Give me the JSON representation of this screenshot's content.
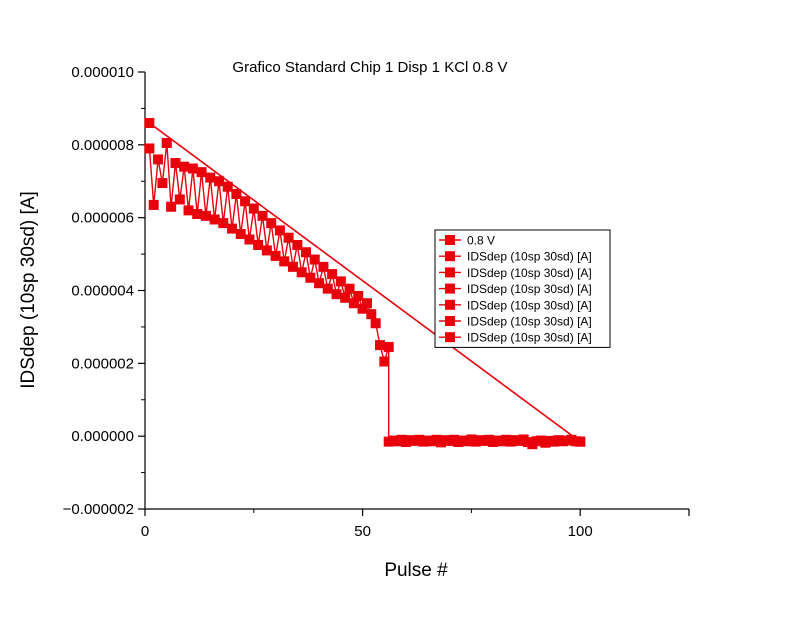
{
  "chart_data": {
    "type": "line",
    "title": "Grafico Standard Chip 1 Disp 1 KCl 0.8 V",
    "xlabel": "Pulse #",
    "ylabel": "IDSdep (10sp 30sd) [A]",
    "xlim": [
      0,
      125
    ],
    "ylim": [
      -2e-06,
      1e-05
    ],
    "x_ticks": [
      0,
      50,
      100
    ],
    "x_tick_labels": [
      "0",
      "50",
      "100"
    ],
    "y_ticks": [
      -2e-06,
      0,
      2e-06,
      4e-06,
      6e-06,
      8e-06,
      1e-05
    ],
    "y_tick_labels": [
      "−0.000002",
      "0.000000",
      "0.000002",
      "0.000004",
      "0.000006",
      "0.000008",
      "0.000010"
    ],
    "grid": false,
    "legend_position": "right",
    "colors": {
      "series": "#e8000b",
      "axis": "#000000"
    },
    "series": [
      {
        "name": "0.8 V",
        "x": [
          1,
          2,
          3,
          4,
          5,
          6,
          7,
          8,
          9,
          10,
          11,
          12,
          13,
          14,
          15,
          16,
          17,
          18,
          19,
          20,
          21,
          22,
          23,
          24,
          25,
          26,
          27,
          28,
          29,
          30,
          31,
          32,
          33,
          34,
          35,
          36,
          37,
          38,
          39,
          40,
          41,
          42,
          43,
          44,
          45,
          46,
          47,
          48,
          49,
          50,
          51,
          52,
          53,
          54,
          55,
          56,
          57,
          58,
          59,
          60,
          61,
          62,
          63,
          64,
          65,
          66,
          67,
          68,
          69,
          70,
          71,
          72,
          73,
          74,
          75,
          76,
          77,
          78,
          79,
          80,
          81,
          82,
          83,
          84,
          85,
          86,
          87,
          88,
          89,
          90,
          91,
          92,
          93,
          94,
          95,
          96,
          97,
          98,
          99,
          100
        ],
        "y": [
          8.6e-06,
          7.9e-06,
          6.35e-06,
          7.6e-06,
          6.95e-06,
          8.05e-06,
          6.3e-06,
          7.5e-06,
          6.5e-06,
          7.4e-06,
          6.2e-06,
          7.35e-06,
          6.1e-06,
          7.25e-06,
          6.05e-06,
          7.1e-06,
          5.95e-06,
          7e-06,
          5.85e-06,
          6.85e-06,
          5.7e-06,
          6.65e-06,
          5.55e-06,
          6.45e-06,
          5.4e-06,
          6.25e-06,
          5.25e-06,
          6.05e-06,
          5.1e-06,
          5.85e-06,
          4.95e-06,
          5.65e-06,
          4.8e-06,
          5.45e-06,
          4.65e-06,
          5.25e-06,
          4.5e-06,
          5.05e-06,
          4.35e-06,
          4.85e-06,
          4.2e-06,
          4.65e-06,
          4.05e-06,
          4.45e-06,
          3.9e-06,
          4.25e-06,
          3.8e-06,
          4.05e-06,
          3.65e-06,
          3.85e-06,
          3.5e-06,
          3.65e-06,
          3.35e-06,
          3.45e-06,
          3.2e-06,
          3.3e-06,
          3.05e-06,
          3.15e-06,
          2.95e-06,
          3e-06,
          2.85e-06,
          2.85e-06,
          2.75e-06,
          2.7e-06,
          2.65e-06,
          2.55e-06,
          2.5e-06,
          2.45e-06,
          2.35e-06,
          2.3e-06,
          2.25e-06,
          2.15e-06,
          2.1e-06,
          2.05e-06,
          1.95e-06,
          1.9e-06,
          1.8e-06,
          1.75e-06,
          1.65e-06,
          1.6e-06,
          1.5e-06,
          1.45e-06,
          1.35e-06,
          1.3e-06,
          1.2e-06,
          1.15e-06,
          1.05e-06,
          1e-06,
          9e-07,
          8.5e-07,
          7.5e-07,
          7e-07,
          6e-07,
          5.5e-07,
          4.5e-07,
          3.5e-07,
          2e-07,
          5e-08,
          -1e-07,
          -1.5e-07
        ]
      },
      {
        "name": "IDSdep (10sp 30sd) [A]",
        "x": [
          1,
          2,
          3,
          4,
          5,
          6,
          7,
          8,
          9,
          10,
          11,
          12,
          13,
          14,
          15,
          16,
          17,
          18,
          19,
          20,
          21,
          22,
          23,
          24,
          25,
          26,
          27,
          28,
          29,
          30,
          31,
          32,
          33,
          34,
          35,
          36,
          37,
          38,
          39,
          40,
          41,
          42,
          43,
          44,
          45,
          46,
          47,
          48,
          49,
          50,
          51,
          52,
          53,
          54,
          55,
          56
        ],
        "y": [
          7.9e-06,
          6.35e-06,
          7.6e-06,
          6.95e-06,
          8.05e-06,
          6.3e-06,
          7.5e-06,
          6.5e-06,
          7.4e-06,
          6.2e-06,
          7.35e-06,
          6.1e-06,
          7.25e-06,
          6.05e-06,
          7.1e-06,
          5.95e-06,
          7e-06,
          5.85e-06,
          6.85e-06,
          5.7e-06,
          6.65e-06,
          5.55e-06,
          6.45e-06,
          5.4e-06,
          6.25e-06,
          5.25e-06,
          6.05e-06,
          5.1e-06,
          5.85e-06,
          4.95e-06,
          5.65e-06,
          4.8e-06,
          5.45e-06,
          4.65e-06,
          5.25e-06,
          4.5e-06,
          5.05e-06,
          4.35e-06,
          4.85e-06,
          4.2e-06,
          4.65e-06,
          4.05e-06,
          4.45e-06,
          3.9e-06,
          4.25e-06,
          3.8e-06,
          4.05e-06,
          3.65e-06,
          3.85e-06,
          3.5e-06,
          3.65e-06,
          3.35e-06,
          3.1e-06,
          2.5e-06,
          2.05e-06,
          2.45e-06
        ]
      },
      {
        "name": "IDSdep (10sp 30sd) [A]",
        "x": [
          56,
          57,
          58,
          59,
          60,
          61,
          62,
          63,
          64,
          65,
          66,
          67,
          68,
          69,
          70,
          71,
          72,
          73,
          74,
          75,
          76,
          77,
          78,
          79,
          80,
          81,
          82,
          83,
          84,
          85,
          86,
          87,
          88,
          89,
          90,
          91,
          92,
          93,
          94,
          95,
          96,
          97,
          98,
          99,
          100
        ],
        "y": [
          -1.5e-07,
          -1.2e-07,
          -1.4e-07,
          -1e-07,
          -1.6e-07,
          -1.1e-07,
          -1.3e-07,
          -1e-07,
          -1.5e-07,
          -1.2e-07,
          -1.4e-07,
          -1e-07,
          -1.7e-07,
          -1.1e-07,
          -1.3e-07,
          -1e-07,
          -1.6e-07,
          -1.2e-07,
          -1.4e-07,
          -9e-08,
          -1.5e-07,
          -1.1e-07,
          -1.3e-07,
          -1e-07,
          -1.6e-07,
          -1.2e-07,
          -1.4e-07,
          -1e-07,
          -1.5e-07,
          -1.1e-07,
          -1.3e-07,
          -9e-08,
          -1.6e-07,
          -2.2e-07,
          -1.4e-07,
          -1.2e-07,
          -1.8e-07,
          -1.3e-07,
          -1.5e-07,
          -1.1e-07,
          -1.4e-07,
          -1.2e-07,
          -1e-07,
          -1.4e-07,
          -1.5e-07
        ]
      },
      {
        "name": "IDSdep (10sp 30sd) [A]",
        "x": [],
        "y": []
      },
      {
        "name": "IDSdep (10sp 30sd) [A]",
        "x": [],
        "y": []
      },
      {
        "name": "IDSdep (10sp 30sd) [A]",
        "x": [],
        "y": []
      },
      {
        "name": "IDSdep (10sp 30sd) [A]",
        "x": [],
        "y": []
      }
    ]
  }
}
